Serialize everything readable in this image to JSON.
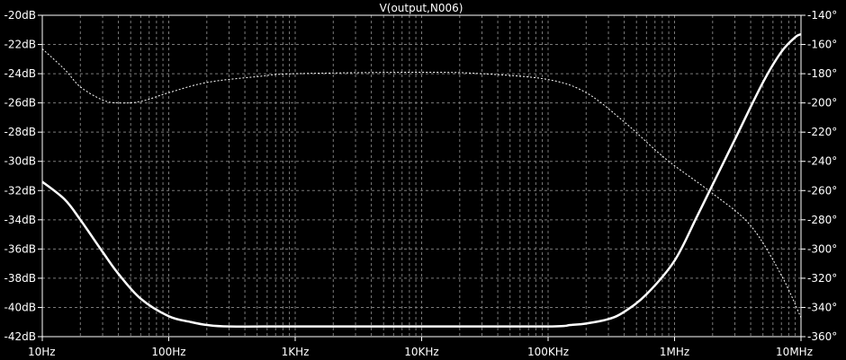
{
  "chart_data": {
    "type": "line",
    "title": "V(output,N006)",
    "x_scale": "log",
    "x_range": [
      10,
      10000000
    ],
    "x_ticks": [
      {
        "value": 10,
        "label": "10Hz"
      },
      {
        "value": 100,
        "label": "100Hz"
      },
      {
        "value": 1000,
        "label": "1KHz"
      },
      {
        "value": 10000,
        "label": "10KHz"
      },
      {
        "value": 100000,
        "label": "100KHz"
      },
      {
        "value": 1000000,
        "label": "1MHz"
      },
      {
        "value": 10000000,
        "label": "10MHz"
      }
    ],
    "y_left": {
      "range": [
        -42,
        -20
      ],
      "ticks": [
        {
          "value": -20,
          "label": "-20dB"
        },
        {
          "value": -22,
          "label": "-22dB"
        },
        {
          "value": -24,
          "label": "-24dB"
        },
        {
          "value": -26,
          "label": "-26dB"
        },
        {
          "value": -28,
          "label": "-28dB"
        },
        {
          "value": -30,
          "label": "-30dB"
        },
        {
          "value": -32,
          "label": "-32dB"
        },
        {
          "value": -34,
          "label": "-34dB"
        },
        {
          "value": -36,
          "label": "-36dB"
        },
        {
          "value": -38,
          "label": "-38dB"
        },
        {
          "value": -40,
          "label": "-40dB"
        },
        {
          "value": -42,
          "label": "-42dB"
        }
      ]
    },
    "y_right": {
      "range": [
        -360,
        -140
      ],
      "ticks": [
        {
          "value": -140,
          "label": "-140°"
        },
        {
          "value": -160,
          "label": "-160°"
        },
        {
          "value": -180,
          "label": "-180°"
        },
        {
          "value": -200,
          "label": "-200°"
        },
        {
          "value": -220,
          "label": "-220°"
        },
        {
          "value": -240,
          "label": "-240°"
        },
        {
          "value": -260,
          "label": "-260°"
        },
        {
          "value": -280,
          "label": "-280°"
        },
        {
          "value": -300,
          "label": "-300°"
        },
        {
          "value": -320,
          "label": "-320°"
        },
        {
          "value": -340,
          "label": "-340°"
        },
        {
          "value": -360,
          "label": "-360°"
        }
      ]
    },
    "grid": true,
    "series": [
      {
        "axis": "left",
        "style": "solid",
        "color": "#ffffff",
        "points": [
          [
            10,
            -31.4
          ],
          [
            15,
            -32.6
          ],
          [
            20,
            -34.0
          ],
          [
            30,
            -36.2
          ],
          [
            40,
            -37.7
          ],
          [
            60,
            -39.4
          ],
          [
            100,
            -40.6
          ],
          [
            150,
            -41.0
          ],
          [
            200,
            -41.2
          ],
          [
            300,
            -41.3
          ],
          [
            1000,
            -41.3
          ],
          [
            10000,
            -41.3
          ],
          [
            100000,
            -41.3
          ],
          [
            150000,
            -41.2
          ],
          [
            200000,
            -41.1
          ],
          [
            300000,
            -40.8
          ],
          [
            400000,
            -40.3
          ],
          [
            600000,
            -39.1
          ],
          [
            1000000,
            -36.8
          ],
          [
            1500000,
            -33.8
          ],
          [
            2000000,
            -31.6
          ],
          [
            3000000,
            -28.5
          ],
          [
            5000000,
            -24.6
          ],
          [
            7000000,
            -22.5
          ],
          [
            9000000,
            -21.5
          ],
          [
            10000000,
            -21.3
          ]
        ]
      },
      {
        "axis": "right",
        "style": "dashed",
        "color": "#ffffff",
        "points": [
          [
            10,
            -163
          ],
          [
            15,
            -177
          ],
          [
            20,
            -189
          ],
          [
            30,
            -198
          ],
          [
            40,
            -200
          ],
          [
            60,
            -199
          ],
          [
            100,
            -193
          ],
          [
            200,
            -186
          ],
          [
            500,
            -182
          ],
          [
            1000,
            -180
          ],
          [
            10000,
            -179
          ],
          [
            30000,
            -180
          ],
          [
            100000,
            -184
          ],
          [
            200000,
            -193
          ],
          [
            400000,
            -213
          ],
          [
            700000,
            -232
          ],
          [
            1000000,
            -243
          ],
          [
            2000000,
            -262
          ],
          [
            4000000,
            -284
          ],
          [
            7000000,
            -318
          ],
          [
            10000000,
            -347
          ]
        ]
      }
    ]
  }
}
